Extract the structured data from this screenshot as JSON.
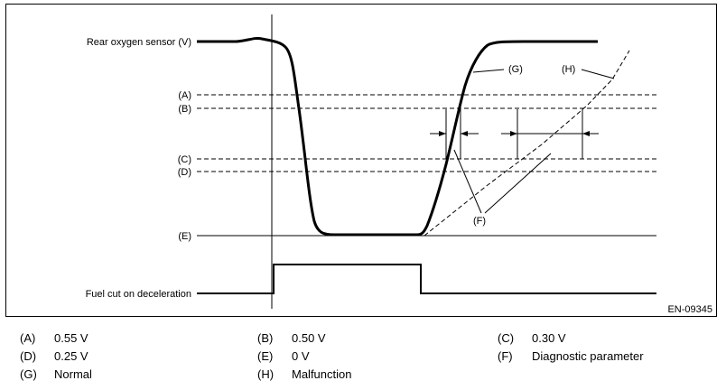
{
  "diagram": {
    "signals": {
      "rear_sensor": "Rear oxygen sensor (V)",
      "fuel_cut": "Fuel cut on deceleration"
    },
    "levels": [
      "(A)",
      "(B)",
      "(C)",
      "(D)",
      "(E)"
    ],
    "curve_labels": {
      "g": "(G)",
      "h": "(H)",
      "f": "(F)"
    },
    "figure_id": "EN-09345"
  },
  "legend": [
    {
      "key": "(A)",
      "value": "0.55 V"
    },
    {
      "key": "(B)",
      "value": "0.50 V"
    },
    {
      "key": "(C)",
      "value": "0.30 V"
    },
    {
      "key": "(D)",
      "value": "0.25 V"
    },
    {
      "key": "(E)",
      "value": "0 V"
    },
    {
      "key": "(F)",
      "value": "Diagnostic parameter"
    },
    {
      "key": "(G)",
      "value": "Normal"
    },
    {
      "key": "(H)",
      "value": "Malfunction"
    }
  ]
}
